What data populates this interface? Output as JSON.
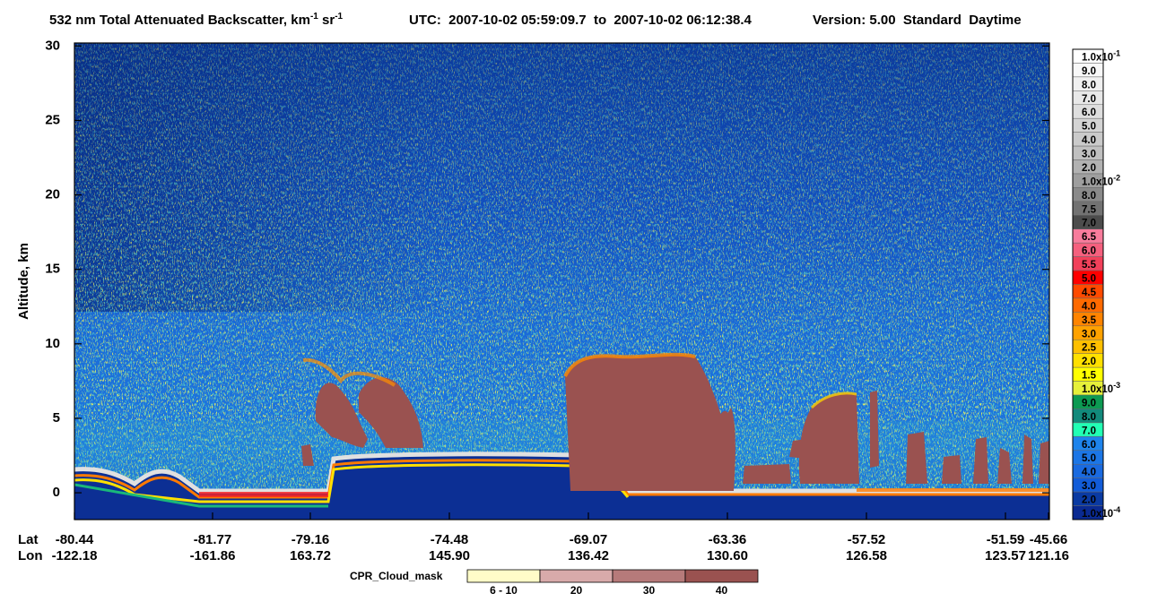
{
  "chart_data": {
    "type": "heatmap",
    "title": {
      "main": "532 nm Total Attenuated Backscatter, km",
      "exp1": "-1",
      "unit2": " sr",
      "exp2": "-1",
      "utc": "UTC:  2007-10-02 05:59:09.7  to  2007-10-02 06:12:38.4",
      "version": "Version: 5.00  Standard  Daytime"
    },
    "y_label": "Altitude, km",
    "ylim": [
      -1.8,
      30.2
    ],
    "yticks": [
      0,
      5,
      10,
      15,
      20,
      25,
      30
    ],
    "x_row_labels": [
      "Lat",
      "Lon"
    ],
    "lat": [
      "-80.44",
      "-81.77",
      "-79.16",
      "-74.48",
      "-69.07",
      "-63.36",
      "-57.52",
      "-51.59",
      "-45.66"
    ],
    "lon": [
      "-122.18",
      "-161.86",
      "163.72",
      "145.90",
      "136.42",
      "130.60",
      "126.58",
      "123.57",
      "121.16"
    ],
    "colorbar": {
      "labels": [
        {
          "text": "1.0x10",
          "exp": "-1"
        },
        "9.0",
        "8.0",
        "7.0",
        "6.0",
        "5.0",
        "4.0",
        "3.0",
        "2.0",
        {
          "text": "1.0x10",
          "exp": "-2"
        },
        "8.0",
        "7.5",
        "7.0",
        "6.5",
        "6.0",
        "5.5",
        "5.0",
        "4.5",
        "4.0",
        "3.5",
        "3.0",
        "2.5",
        "2.0",
        "1.5",
        {
          "text": "1.0x10",
          "exp": "-3"
        },
        "9.0",
        "8.0",
        "7.0",
        "6.0",
        "5.0",
        "4.0",
        "3.0",
        "2.0",
        {
          "text": "1.0x10",
          "exp": "-4"
        }
      ],
      "colors": [
        "#ffffff",
        "#f8f8f8",
        "#f0f0f0",
        "#e8e8e8",
        "#dedede",
        "#d4d4d4",
        "#cacaca",
        "#c0c0c0",
        "#b2b2b2",
        "#9e9e9e",
        "#8a8a8a",
        "#727272",
        "#4c4c4c",
        "#f87c9c",
        "#f5607e",
        "#f2405a",
        "#ff0000",
        "#ff4a00",
        "#ff6a00",
        "#ff8400",
        "#ffa200",
        "#ffc000",
        "#ffe000",
        "#ffff00",
        "#e6f03a",
        "#0c9a52",
        "#128a7c",
        "#22ffb4",
        "#1e84ec",
        "#1c76e6",
        "#1a6ae0",
        "#125cd8",
        "#0a3aa2",
        "#0a2a92"
      ]
    },
    "cpr_legend": {
      "title": "CPR_Cloud_mask",
      "labels": [
        "6 - 10",
        "20",
        "30",
        "40"
      ],
      "colors": [
        "#fffcc8",
        "#d8aaaa",
        "#b67a7a",
        "#9a5250"
      ]
    }
  }
}
